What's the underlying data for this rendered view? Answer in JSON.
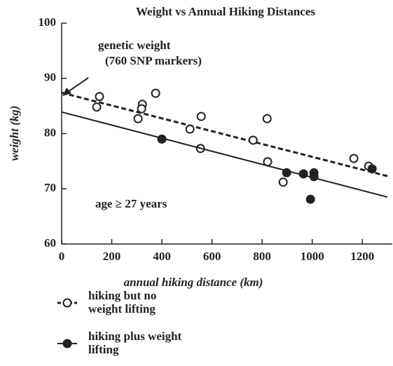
{
  "chart_data": {
    "type": "scatter",
    "title": "Weight vs Annual Hiking Distances",
    "x_label": "annual hiking distance (km)",
    "y_label": "weight (kg)",
    "annotations": [
      "genetic weight",
      "(760 SNP markers)",
      "age ≥ 27 years"
    ],
    "xlim": [
      0,
      1300
    ],
    "xticks": [
      0,
      200,
      400,
      600,
      800,
      1000,
      1200
    ],
    "ylim": [
      60,
      100
    ],
    "yticks": [
      60,
      70,
      80,
      90,
      100
    ],
    "series": [
      {
        "name": "hiking but no weight lifting",
        "color": "#222222",
        "marker": "open",
        "line": "dashed",
        "x": [
          140,
          151,
          305,
          322,
          319,
          375,
          512,
          557,
          554,
          764,
          820,
          822,
          884,
          1166,
          1225
        ],
        "values": [
          84.8,
          86.7,
          82.7,
          85.3,
          84.5,
          87.3,
          80.8,
          83.1,
          77.3,
          78.8,
          82.7,
          74.9,
          71.2,
          75.5,
          74.1
        ],
        "trend_x": [
          0,
          1300
        ],
        "trend": [
          87.4,
          72.3
        ]
      },
      {
        "name": "hiking plus weight lifting",
        "color": "#222222",
        "marker": "filled",
        "line": "solid",
        "x": [
          400,
          898,
          965,
          1007,
          1007,
          993,
          1239
        ],
        "values": [
          79.0,
          72.9,
          72.7,
          72.9,
          72.2,
          68.1,
          73.6
        ],
        "trend_x": [
          0,
          1300
        ],
        "trend": [
          83.9,
          68.5
        ]
      }
    ]
  }
}
